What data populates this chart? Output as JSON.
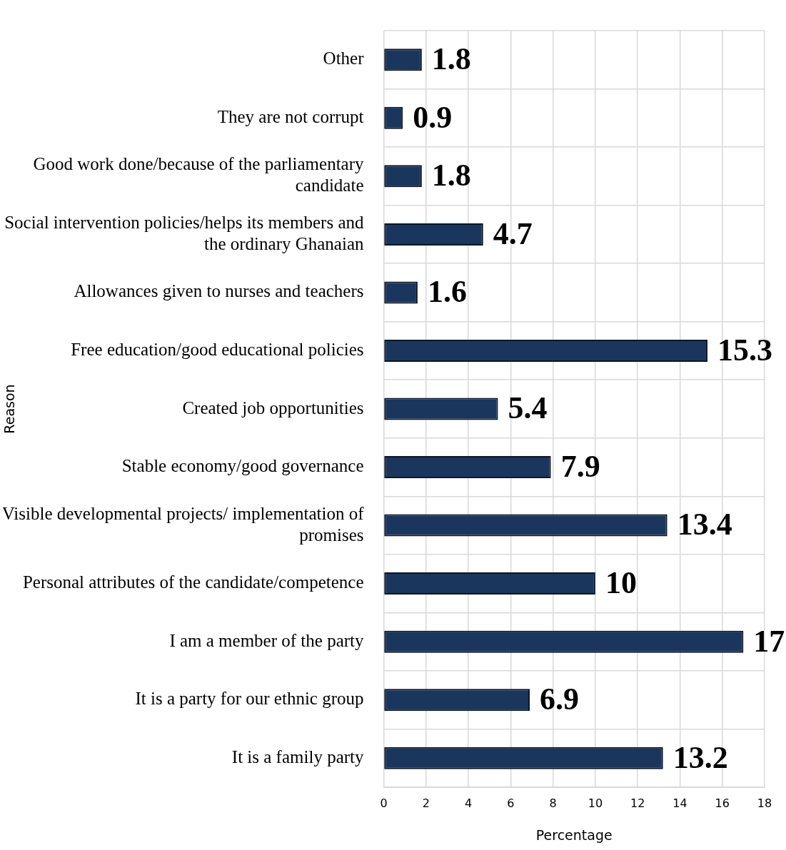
{
  "chart_data": {
    "type": "bar",
    "orientation": "horizontal",
    "xlabel": "Percentage",
    "ylabel": "Reason",
    "categories": [
      "Other",
      "They are not corrupt",
      "Good work done/because of the parliamentary candidate",
      "Social intervention policies/helps its members and the ordinary Ghanaian",
      "Allowances given to nurses and teachers",
      "Free education/good educational policies",
      "Created job opportunities",
      "Stable economy/good governance",
      "Visible developmental projects/ implementation of promises",
      "Personal attributes of the candidate/competence",
      "I am a member of the party",
      "It is a party for our ethnic group",
      "It is a family party"
    ],
    "values": [
      1.8,
      0.9,
      1.8,
      4.7,
      1.6,
      15.3,
      5.4,
      7.9,
      13.4,
      10,
      17,
      6.9,
      13.2
    ],
    "color": "#1b365d",
    "xlim": [
      0,
      18
    ],
    "xticks": [
      0,
      2,
      4,
      6,
      8,
      10,
      12,
      14,
      16,
      18
    ],
    "grid": true,
    "legend": false,
    "data_labels": true
  }
}
